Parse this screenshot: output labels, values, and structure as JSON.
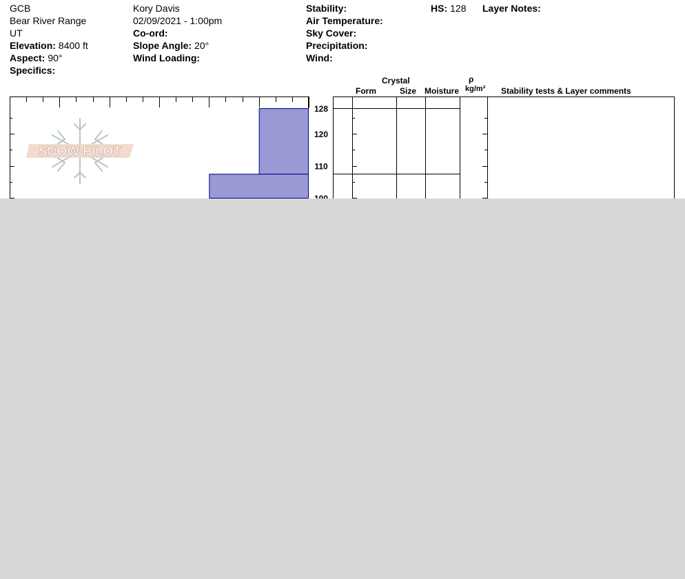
{
  "header": {
    "location": "GCB",
    "range": "Bear River Range",
    "state": "UT",
    "elevation": {
      "label": "Elevation:",
      "value": "8400 ft"
    },
    "aspect": {
      "label": "Aspect:",
      "value": "90°"
    },
    "specifics": {
      "label": "Specifics:",
      "value": ""
    },
    "observer": "Kory Davis",
    "datetime": "02/09/2021 - 1:00pm",
    "coord": {
      "label": "Co-ord:",
      "value": ""
    },
    "slope_angle": {
      "label": "Slope Angle:",
      "value": "20°"
    },
    "wind_loading": {
      "label": "Wind Loading:",
      "value": ""
    },
    "stability": {
      "label": "Stability:",
      "value": ""
    },
    "air_temperature": {
      "label": "Air Temperature:",
      "value": ""
    },
    "sky_cover": {
      "label": "Sky Cover:",
      "value": ""
    },
    "precipitation": {
      "label": "Precipitation:",
      "value": ""
    },
    "wind": {
      "label": "Wind:",
      "value": ""
    },
    "hs": {
      "label": "HS:",
      "value": "128"
    },
    "layer_notes": {
      "label": "Layer Notes:",
      "value": ""
    }
  },
  "logo": {
    "text": "SNOW PILOT"
  },
  "table_headers": {
    "crystal": "Crystal",
    "form": "Form",
    "size": "Size",
    "moisture": "Moisture",
    "rho": "ρ",
    "density_unit": "kg/m³",
    "comments": "Stability tests & Layer comments"
  },
  "chart_data": {
    "type": "bar",
    "orientation": "horizontal-step",
    "y_axis_labels": [
      "128",
      "120",
      "110",
      "100"
    ],
    "y_ticks": [
      128,
      120,
      110,
      100
    ],
    "layer_boundaries": [
      128,
      107.5
    ],
    "layers": [
      {
        "top": 128,
        "bottom": 107.5,
        "hardness_level": 1
      },
      {
        "top": 107.5,
        "bottom": 100,
        "hardness_level": 2
      }
    ],
    "hardness_max": 6,
    "colors": {
      "fill": "#9999d6",
      "stroke": "#000080",
      "gray": "#d7d7d7"
    }
  }
}
